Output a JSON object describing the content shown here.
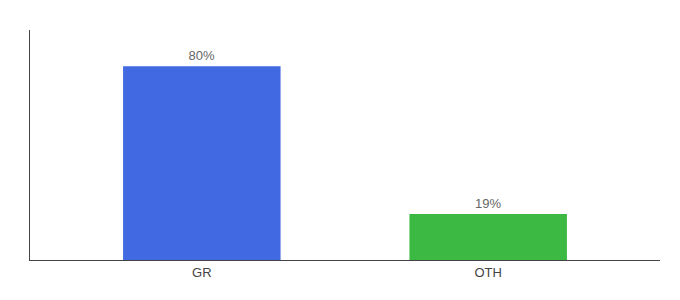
{
  "chart_data": {
    "type": "bar",
    "categories": [
      "GR",
      "OTH"
    ],
    "values": [
      80,
      19
    ],
    "value_labels": [
      "80%",
      "19%"
    ],
    "data_labels": true,
    "colors": [
      "#4169E1",
      "#3CB943"
    ],
    "ylim": [
      0,
      95
    ],
    "yticks": [],
    "grid": false,
    "tick_labels": "x"
  }
}
